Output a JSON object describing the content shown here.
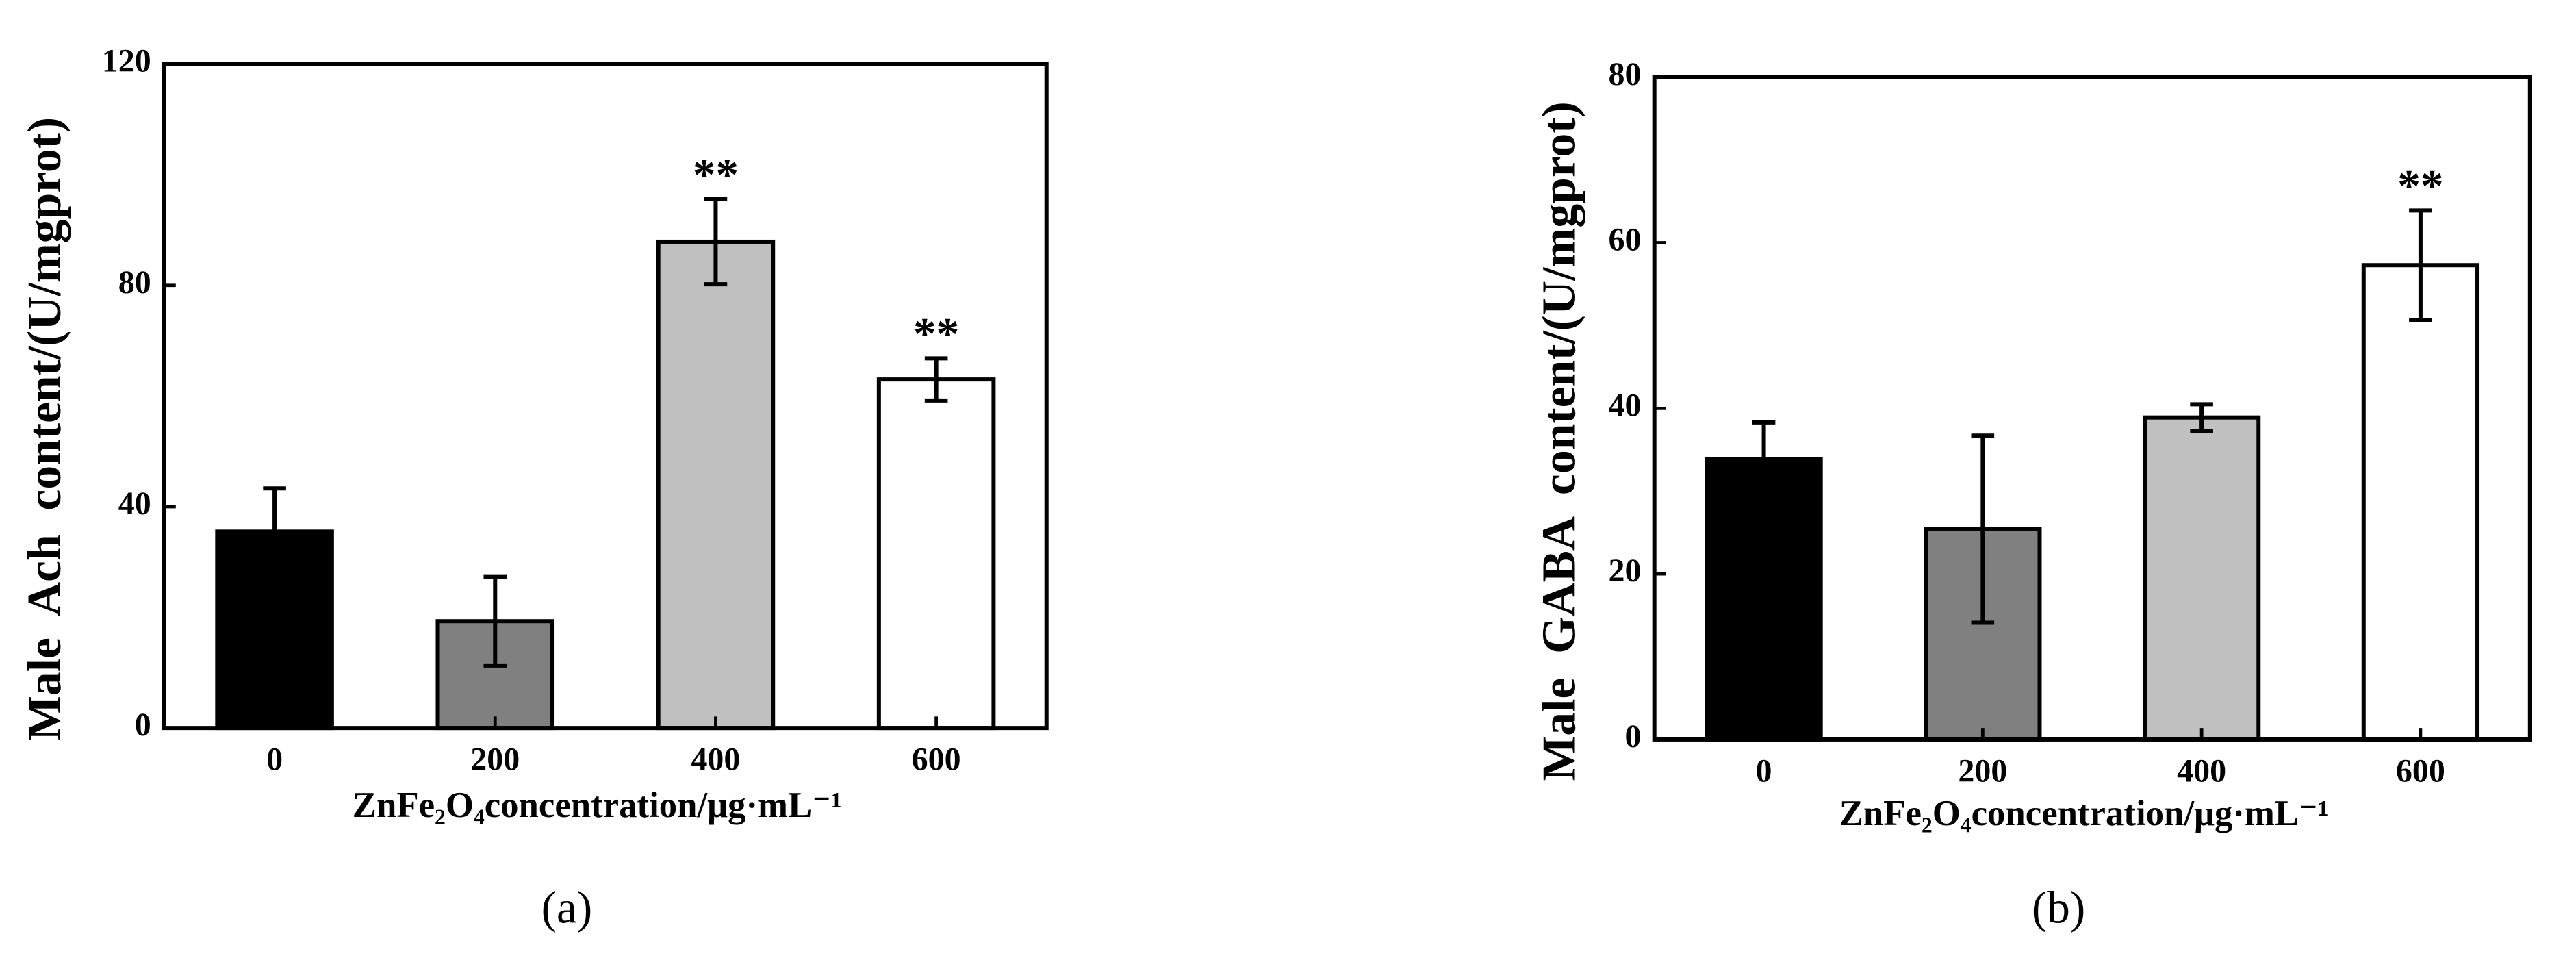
{
  "chart_data": [
    {
      "type": "bar",
      "panel_label": "(a)",
      "y_label": "Male  Ach  content/(U/mgprot)",
      "x_label": "ZnFe₂O₄concentration/μg·mL⁻¹",
      "categories": [
        "0",
        "200",
        "400",
        "600"
      ],
      "values": [
        35.5,
        19.3,
        87.9,
        63
      ],
      "errors": [
        7.8,
        8,
        7.7,
        3.8
      ],
      "significance": [
        null,
        null,
        "**",
        "**"
      ],
      "colors": [
        "#000000",
        "#808080",
        "#c0c0c0",
        "#ffffff"
      ],
      "ylim": [
        0,
        120
      ],
      "yticks": [
        0,
        40,
        80,
        120
      ]
    },
    {
      "type": "bar",
      "panel_label": "(b)",
      "y_label": "Male  GABA  content/(U/mgprot)",
      "x_label": "ZnFe₂O₄concentration/μg·mL⁻¹",
      "categories": [
        "0",
        "200",
        "400",
        "600"
      ],
      "values": [
        33.9,
        25.4,
        38.9,
        57.3
      ],
      "errors": [
        4.4,
        11.3,
        1.6,
        6.6
      ],
      "significance": [
        null,
        null,
        null,
        "**"
      ],
      "colors": [
        "#000000",
        "#808080",
        "#c0c0c0",
        "#ffffff"
      ],
      "ylim": [
        0,
        80
      ],
      "yticks": [
        0,
        20,
        40,
        60,
        80
      ]
    }
  ]
}
